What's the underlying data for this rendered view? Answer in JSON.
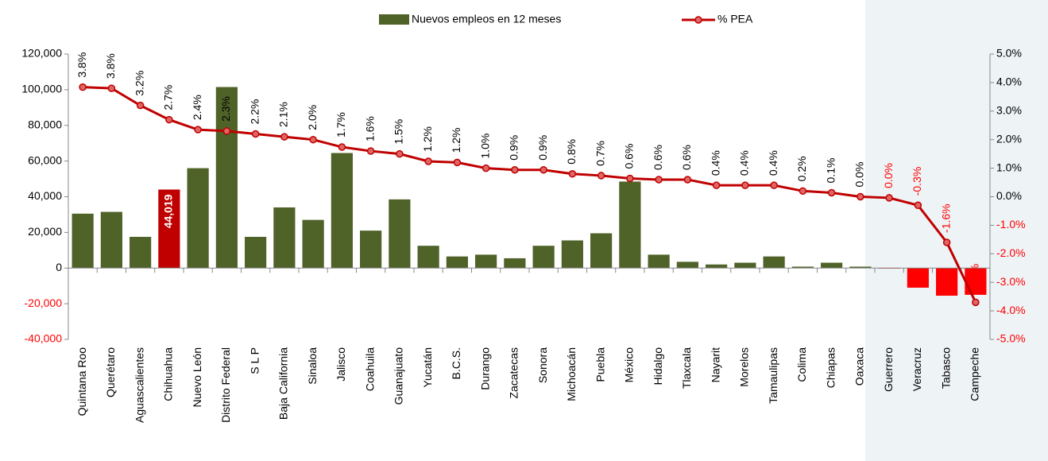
{
  "chart_data": {
    "type": "bar_line",
    "categories": [
      "Quintana Roo",
      "Querétaro",
      "Aguascalientes",
      "Chihuahua",
      "Nuevo León",
      "Distrito Federal",
      "S L P",
      "Baja California",
      "Sinaloa",
      "Jalisco",
      "Coahuila",
      "Guanajuato",
      "Yucatán",
      "B.C.S.",
      "Durango",
      "Zacatecas",
      "Sonora",
      "Michoacán",
      "Puebla",
      "México",
      "Hidalgo",
      "Tlaxcala",
      "Nayarit",
      "Morelos",
      "Tamaulipas",
      "Colima",
      "Chiapas",
      "Oaxaca",
      "Guerrero",
      "Veracruz",
      "Tabasco",
      "Campeche"
    ],
    "series": [
      {
        "name": "Nuevos empleos en 12 meses",
        "type": "bar",
        "color": "#4f6228",
        "values": [
          30500,
          31500,
          17500,
          44019,
          56000,
          101500,
          17500,
          34000,
          27000,
          64500,
          21000,
          38500,
          12500,
          6500,
          7500,
          5500,
          12500,
          15500,
          19500,
          48500,
          7500,
          3500,
          2000,
          3000,
          6500,
          800,
          3000,
          800,
          -300,
          -11000,
          -15500,
          -15000
        ],
        "colors": [
          "#4f6228",
          "#4f6228",
          "#4f6228",
          "#c00000",
          "#4f6228",
          "#4f6228",
          "#4f6228",
          "#4f6228",
          "#4f6228",
          "#4f6228",
          "#4f6228",
          "#4f6228",
          "#4f6228",
          "#4f6228",
          "#4f6228",
          "#4f6228",
          "#4f6228",
          "#4f6228",
          "#4f6228",
          "#4f6228",
          "#4f6228",
          "#4f6228",
          "#4f6228",
          "#4f6228",
          "#4f6228",
          "#4f6228",
          "#4f6228",
          "#4f6228",
          "#ff0000",
          "#ff0000",
          "#ff0000",
          "#ff0000"
        ],
        "value_labels": [
          null,
          null,
          null,
          "44,019",
          null,
          null,
          null,
          null,
          null,
          null,
          null,
          null,
          null,
          null,
          null,
          null,
          null,
          null,
          null,
          null,
          null,
          null,
          null,
          null,
          null,
          null,
          null,
          null,
          null,
          null,
          null,
          null
        ]
      },
      {
        "name": "% PEA",
        "type": "line",
        "axis": "y2",
        "color": "#c00000",
        "values": [
          3.84,
          3.8,
          3.2,
          2.7,
          2.35,
          2.3,
          2.2,
          2.1,
          2.0,
          1.74,
          1.6,
          1.5,
          1.24,
          1.2,
          1.0,
          0.94,
          0.94,
          0.8,
          0.74,
          0.64,
          0.6,
          0.6,
          0.4,
          0.4,
          0.4,
          0.2,
          0.14,
          0.0,
          -0.04,
          -0.3,
          -1.6,
          -3.7
        ],
        "value_labels": [
          "3.8%",
          "3.8%",
          "3.2%",
          "2.7%",
          "2.4%",
          "2.3%",
          "2.2%",
          "2.1%",
          "2.0%",
          "1.7%",
          "1.6%",
          "1.5%",
          "1.2%",
          "1.2%",
          "1.0%",
          "0.9%",
          "0.9%",
          "0.8%",
          "0.7%",
          "0.6%",
          "0.6%",
          "0.6%",
          "0.4%",
          "0.4%",
          "0.4%",
          "0.2%",
          "0.1%",
          "0.0%",
          "0.0%",
          "-0.3%",
          "-1.6%",
          "-3.7%"
        ],
        "label_colors": [
          "#000",
          "#000",
          "#000",
          "#000",
          "#000",
          "#000",
          "#000",
          "#000",
          "#000",
          "#000",
          "#000",
          "#000",
          "#000",
          "#000",
          "#000",
          "#000",
          "#000",
          "#000",
          "#000",
          "#000",
          "#000",
          "#000",
          "#000",
          "#000",
          "#000",
          "#000",
          "#000",
          "#000",
          "#ff0000",
          "#ff0000",
          "#ff0000",
          "#ff0000"
        ]
      }
    ],
    "ylim": [
      -40000,
      120000
    ],
    "yticks": [
      {
        "value": -40000,
        "label": "-40,000"
      },
      {
        "value": -20000,
        "label": "-20,000"
      },
      0,
      {
        "value": 20000,
        "label": "20,000"
      },
      {
        "value": 40000,
        "label": "40,000"
      },
      {
        "value": 60000,
        "label": "60,000"
      },
      {
        "value": 80000,
        "label": "80,000"
      },
      {
        "value": 100000,
        "label": "100,000"
      },
      {
        "value": 120000,
        "label": "120,000"
      }
    ],
    "y2lim": [
      -5,
      5
    ],
    "y2ticks": [
      {
        "value": -5,
        "label": "-5.0%"
      },
      {
        "value": -4,
        "label": "-4.0%"
      },
      {
        "value": -3,
        "label": "-3.0%"
      },
      {
        "value": -2,
        "label": "-2.0%"
      },
      {
        "value": -1,
        "label": "-1.0%"
      },
      {
        "value": 0,
        "label": "0.0%"
      },
      {
        "value": 1,
        "label": "1.0%"
      },
      {
        "value": 2,
        "label": "2.0%"
      },
      {
        "value": 3,
        "label": "3.0%"
      },
      {
        "value": 4,
        "label": "4.0%"
      },
      {
        "value": 5,
        "label": "5.0%"
      }
    ],
    "y2tick_color": "#ff0000",
    "y2tick_colors_positive": "#000000",
    "shade_from": "Guerrero",
    "shade_color": "#eef3f6",
    "legend": "top"
  }
}
